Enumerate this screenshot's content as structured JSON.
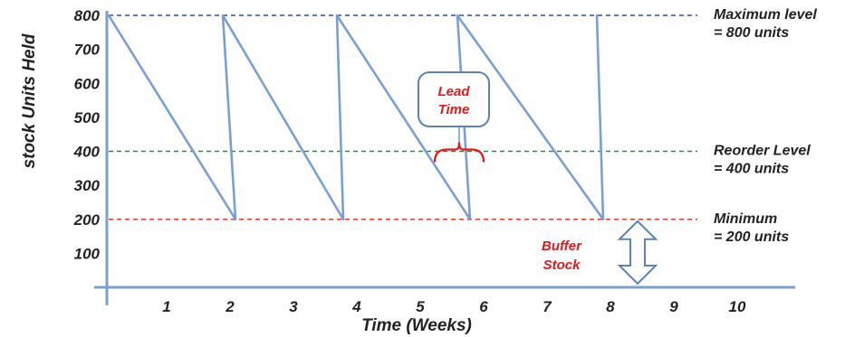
{
  "chart_data": {
    "type": "line",
    "title": "",
    "xlabel": "Time (Weeks)",
    "ylabel": "stock Units Held",
    "xlim": [
      0,
      10.5
    ],
    "ylim": [
      0,
      800
    ],
    "x_ticks": [
      "1",
      "2",
      "3",
      "4",
      "5",
      "6",
      "7",
      "8",
      "9",
      "10"
    ],
    "y_ticks": [
      "100",
      "200",
      "300",
      "400",
      "500",
      "600",
      "700",
      "800"
    ],
    "series": [
      {
        "x": [
          0,
          2,
          1.8,
          3.7,
          3.6,
          5.7,
          5.5,
          7.8,
          7.7
        ],
        "y": [
          800,
          200,
          800,
          200,
          800,
          200,
          800,
          200,
          800
        ],
        "color": "#7a9fd2"
      }
    ],
    "reference_lines": [
      {
        "y": 800,
        "label_line1": "Maximum level",
        "label_line2": "= 800 units",
        "color": "#2b4b9b"
      },
      {
        "y": 400,
        "label_line1": "Reorder Level",
        "label_line2": "= 400 units",
        "color": "#1a9a2a"
      },
      {
        "y": 200,
        "label_line1": "Minimum",
        "label_line2": "= 200 units",
        "color": "#e03a2a"
      }
    ],
    "annotations": {
      "lead_time_line1": "Lead",
      "lead_time_line2": "Time",
      "buffer_line1": "Buffer",
      "buffer_line2": "Stock",
      "label_color": "#e0191c"
    }
  }
}
